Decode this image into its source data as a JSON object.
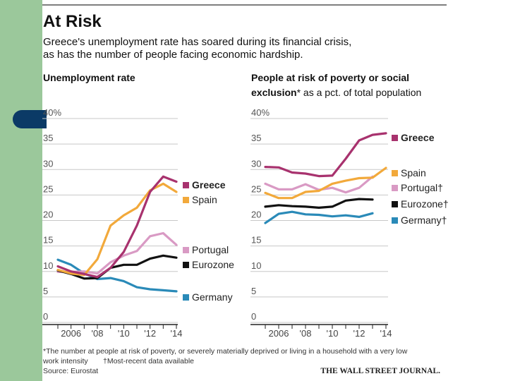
{
  "header": {
    "title": "At Risk",
    "subtitle_line1": "Greece's unemployment rate has soared during its financial crisis,",
    "subtitle_line2": "as has the number of people facing economic hardship."
  },
  "colors": {
    "greece": "#a8326e",
    "spain": "#f2a93b",
    "portugal": "#d99ac4",
    "eurozone": "#111111",
    "germany": "#2a8ab8",
    "grid": "#c8c8c8",
    "sidebar": "#9bc89b",
    "tab": "#0b3a66"
  },
  "chart_data": [
    {
      "type": "line",
      "title": "Unemployment rate",
      "x": [
        2005,
        2006,
        2007,
        2008,
        2009,
        2010,
        2011,
        2012,
        2013,
        2014
      ],
      "x_tick_labels": [
        "2006",
        "'08",
        "'10",
        "'12",
        "'14"
      ],
      "y_tick_labels": [
        "40%",
        "35",
        "30",
        "25",
        "20",
        "15",
        "10",
        "5",
        "0"
      ],
      "ylim": [
        0,
        40
      ],
      "series": [
        {
          "name": "Greece",
          "values": [
            9.9,
            8.9,
            8.4,
            7.8,
            9.6,
            12.7,
            17.9,
            24.5,
            27.5,
            26.5
          ]
        },
        {
          "name": "Spain",
          "values": [
            9.2,
            8.5,
            8.2,
            11.3,
            17.9,
            19.9,
            21.4,
            24.8,
            26.1,
            24.5
          ]
        },
        {
          "name": "Portugal",
          "values": [
            8.8,
            8.8,
            8.9,
            8.5,
            10.7,
            12.0,
            12.9,
            15.8,
            16.4,
            14.1
          ]
        },
        {
          "name": "Eurozone",
          "values": [
            9.1,
            8.4,
            7.5,
            7.6,
            9.6,
            10.2,
            10.2,
            11.4,
            12.0,
            11.6
          ]
        },
        {
          "name": "Germany",
          "values": [
            11.2,
            10.2,
            8.5,
            7.4,
            7.6,
            7.0,
            5.8,
            5.4,
            5.2,
            5.0
          ]
        }
      ]
    },
    {
      "type": "line",
      "title_line1": "People at risk of poverty or social",
      "title_line2_bold": "exclusion",
      "title_line2_rest": "* as a pct. of total population",
      "x": [
        2005,
        2006,
        2007,
        2008,
        2009,
        2010,
        2011,
        2012,
        2013,
        2014
      ],
      "x_tick_labels": [
        "2006",
        "'08",
        "'10",
        "'12",
        "'14"
      ],
      "y_tick_labels": [
        "40%",
        "35",
        "30",
        "25",
        "20",
        "15",
        "10",
        "5",
        "0"
      ],
      "ylim": [
        0,
        40
      ],
      "series": [
        {
          "name": "Greece",
          "values": [
            29.4,
            29.3,
            28.3,
            28.1,
            27.6,
            27.7,
            31.0,
            34.6,
            35.7,
            36.0
          ]
        },
        {
          "name": "Spain",
          "values": [
            24.3,
            23.3,
            23.3,
            24.5,
            24.7,
            26.1,
            26.7,
            27.2,
            27.3,
            29.2
          ]
        },
        {
          "name": "Portugal",
          "values": [
            26.1,
            25.0,
            25.0,
            26.0,
            24.9,
            25.3,
            24.4,
            25.3,
            27.5,
            null
          ]
        },
        {
          "name": "Eurozone",
          "values": [
            21.6,
            21.9,
            21.7,
            21.6,
            21.4,
            21.6,
            22.8,
            23.1,
            23.0,
            null
          ]
        },
        {
          "name": "Germany",
          "values": [
            18.4,
            20.2,
            20.6,
            20.1,
            20.0,
            19.7,
            19.9,
            19.6,
            20.3,
            null
          ]
        }
      ]
    }
  ],
  "footnotes": {
    "line1": "*The number at people at risk of poverty, or severely materially deprived or living in a household with a very low",
    "line2_a": "work intensity",
    "line2_b": "†Most-recent data available",
    "source": "Source: Eurostat",
    "publisher": "THE WALL STREET JOURNAL."
  },
  "legend_left": [
    "Greece",
    "Spain",
    "Portugal",
    "Eurozone",
    "Germany"
  ],
  "legend_right": [
    "Greece",
    "Spain",
    "Portugal†",
    "Eurozone†",
    "Germany†"
  ]
}
